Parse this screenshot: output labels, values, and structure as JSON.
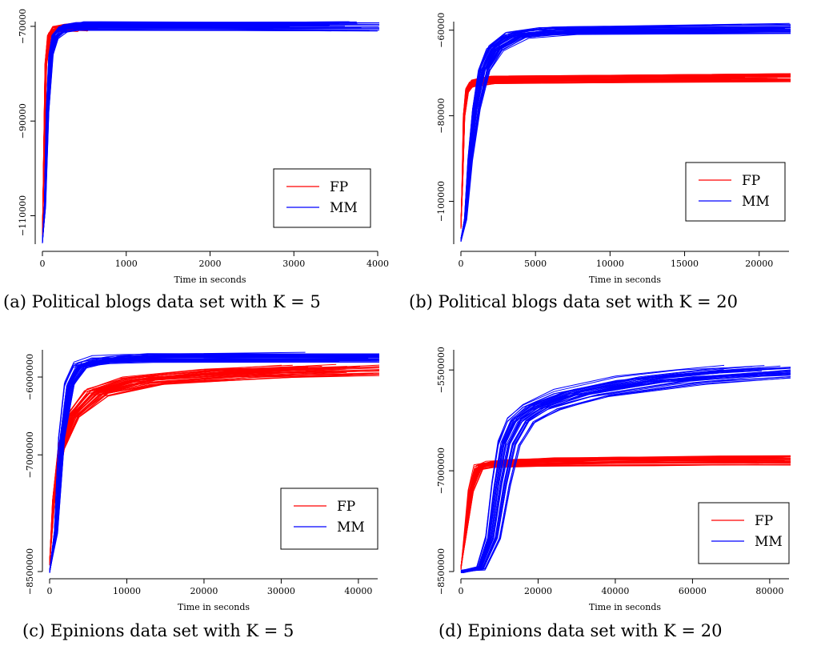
{
  "colors": {
    "FP": "#ff0000",
    "MM": "#0000ff",
    "axis": "#000000"
  },
  "chart_data": [
    {
      "type": "line",
      "caption": "(a) Political blogs data set with K = 5",
      "xlabel": "Time in seconds",
      "xlim": [
        0,
        4000
      ],
      "ylim": [
        -116000,
        -69000
      ],
      "xticks": [
        0,
        1000,
        2000,
        3000,
        4000
      ],
      "xtick_labels": [
        "0",
        "1000",
        "2000",
        "3000",
        "4000"
      ],
      "yticks": [
        -110000,
        -90000,
        -70000
      ],
      "ytick_labels": [
        "−110000",
        "−90000",
        "−70000"
      ],
      "legend": {
        "position": "bottom-right",
        "entries": [
          "FP",
          "MM"
        ]
      },
      "series": [
        {
          "name": "FP",
          "x": [
            0,
            20,
            40,
            80,
            150,
            300,
            500,
            520
          ],
          "y": [
            -115000,
            -96000,
            -78000,
            -72000,
            -70500,
            -70200,
            -70000,
            -70000
          ]
        },
        {
          "name": "MM",
          "x": [
            0,
            30,
            60,
            100,
            150,
            250,
            400,
            3600
          ],
          "y": [
            -115500,
            -108000,
            -88000,
            -76000,
            -72000,
            -70500,
            -70000,
            -70000
          ]
        }
      ]
    },
    {
      "type": "line",
      "caption": "(b) Political blogs data set with K = 20",
      "xlabel": "Time in seconds",
      "xlim": [
        0,
        22000
      ],
      "ylim": [
        -110000,
        -58000
      ],
      "xticks": [
        0,
        5000,
        10000,
        15000,
        20000
      ],
      "xtick_labels": [
        "0",
        "5000",
        "10000",
        "15000",
        "20000"
      ],
      "yticks": [
        -100000,
        -80000,
        -60000
      ],
      "ytick_labels": [
        "−100000",
        "−80000",
        "−60000"
      ],
      "legend": {
        "position": "bottom-right",
        "entries": [
          "FP",
          "MM"
        ]
      },
      "series": [
        {
          "name": "FP",
          "x": [
            0,
            100,
            200,
            400,
            700,
            1200,
            2000,
            21500
          ],
          "y": [
            -106000,
            -95000,
            -80000,
            -74000,
            -72500,
            -72000,
            -71500,
            -71000
          ]
        },
        {
          "name": "MM",
          "x": [
            0,
            300,
            600,
            1000,
            1500,
            2200,
            3500,
            6000,
            21500
          ],
          "y": [
            -109000,
            -104000,
            -90000,
            -78000,
            -69000,
            -64000,
            -61000,
            -60000,
            -59500
          ]
        }
      ]
    },
    {
      "type": "line",
      "caption": "(c) Epinions data set with K = 5",
      "xlabel": "Time in seconds",
      "xlim": [
        0,
        42500
      ],
      "ylim": [
        -8500000,
        -5650000
      ],
      "xticks": [
        0,
        10000,
        20000,
        30000,
        40000
      ],
      "xtick_labels": [
        "0",
        "10000",
        "20000",
        "30000",
        "40000"
      ],
      "yticks": [
        -8500000,
        -7000000,
        -6000000
      ],
      "ytick_labels": [
        "−8500000",
        "−7000000",
        "−6000000"
      ],
      "legend": {
        "position": "bottom-right",
        "entries": [
          "FP",
          "MM"
        ]
      },
      "series": [
        {
          "name": "FP",
          "x": [
            0,
            500,
            1500,
            3000,
            6000,
            12000,
            25000,
            40000
          ],
          "y": [
            -8400000,
            -7600000,
            -6900000,
            -6500000,
            -6200000,
            -6050000,
            -5950000,
            -5900000
          ]
        },
        {
          "name": "MM",
          "x": [
            0,
            800,
            1500,
            2500,
            4000,
            7000,
            12000,
            42000
          ],
          "y": [
            -8500000,
            -8000000,
            -6800000,
            -6100000,
            -5850000,
            -5780000,
            -5760000,
            -5750000
          ]
        }
      ]
    },
    {
      "type": "line",
      "caption": "(d) Epinions data set with K = 20",
      "xlabel": "Time in seconds",
      "xlim": [
        0,
        85000
      ],
      "ylim": [
        -8500000,
        -5200000
      ],
      "xticks": [
        0,
        20000,
        40000,
        60000,
        80000
      ],
      "xtick_labels": [
        "0",
        "20000",
        "40000",
        "60000",
        "80000"
      ],
      "yticks": [
        -8500000,
        -7000000,
        -5500000
      ],
      "ytick_labels": [
        "−8500000",
        "−7000000",
        "−5500000"
      ],
      "legend": {
        "position": "bottom-right",
        "entries": [
          "FP",
          "MM"
        ]
      },
      "series": [
        {
          "name": "FP",
          "x": [
            0,
            1000,
            2500,
            4500,
            8000,
            15000,
            30000,
            55000,
            85000
          ],
          "y": [
            -8450000,
            -8000000,
            -7300000,
            -6950000,
            -6900000,
            -6880000,
            -6860000,
            -6850000,
            -6840000
          ]
        },
        {
          "name": "MM",
          "x": [
            0,
            5000,
            8000,
            10000,
            12000,
            15000,
            20000,
            30000,
            50000,
            70000,
            85000
          ],
          "y": [
            -8500000,
            -8450000,
            -8000000,
            -7200000,
            -6600000,
            -6250000,
            -6050000,
            -5850000,
            -5650000,
            -5550000,
            -5500000
          ]
        }
      ]
    }
  ]
}
